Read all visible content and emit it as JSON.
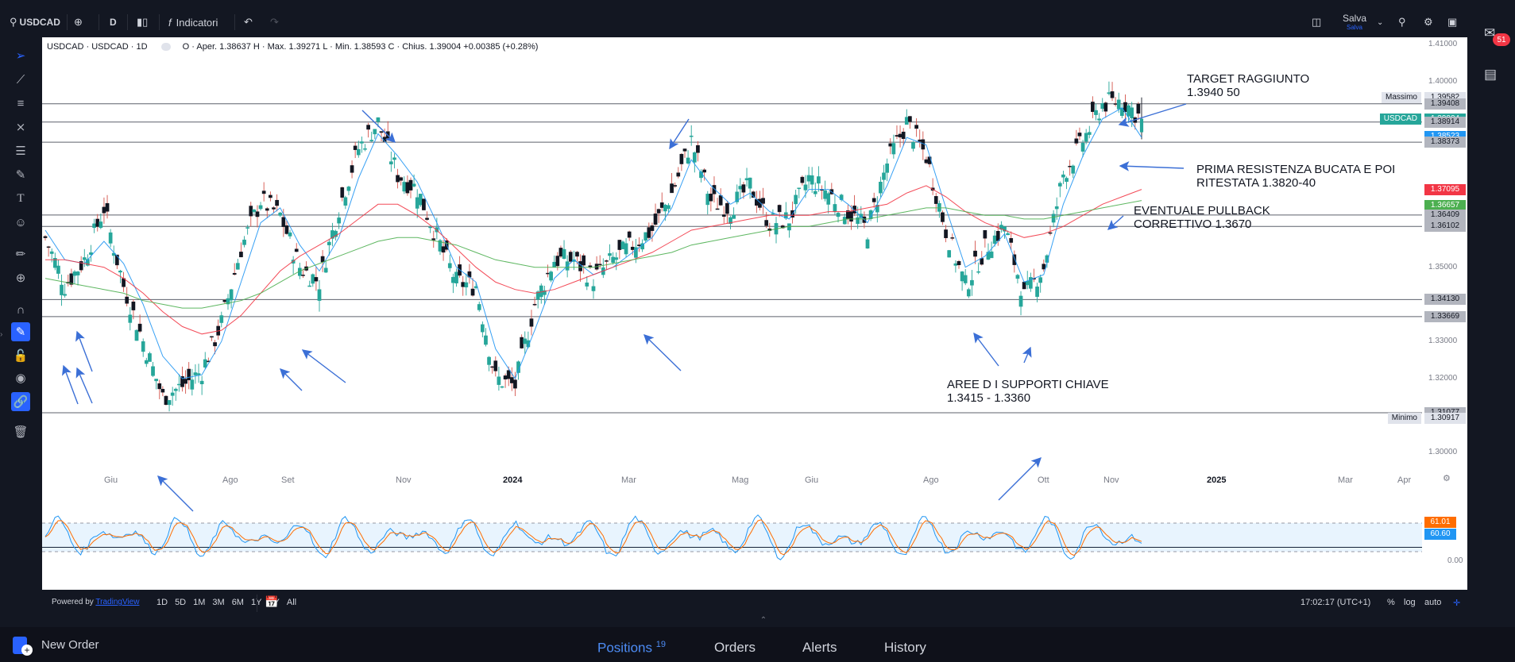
{
  "topbar": {
    "symbol": "USDCAD",
    "interval": "D",
    "indicators": "Indicatori",
    "save_label": "Salva",
    "save_sub": "Salva"
  },
  "legend": {
    "symbol": "USDCAD · USDCAD · 1D",
    "ohlc": "O · Aper. 1.38637 H · Max. 1.39271 L · Min. 1.38593 C · Chius. 1.39004 +0.00385 (+0.28%)"
  },
  "axis": {
    "price_ticks": [
      "1.41000",
      "1.40000",
      "1.35000",
      "1.33000",
      "1.32000",
      "1.30000"
    ],
    "osc_ticks": [
      "0.00"
    ],
    "time_ticks": [
      "Giu",
      "Ago",
      "Set",
      "Nov",
      "2024",
      "Mar",
      "Mag",
      "Giu",
      "Ago",
      "Ott",
      "Nov",
      "2025",
      "Mar",
      "Apr"
    ]
  },
  "price_labels": [
    {
      "text": "1.39582",
      "tag": "Massimo",
      "bg": "#e0e3eb",
      "fg": "#131722"
    },
    {
      "text": "1.39408",
      "tag": "",
      "bg": "#b2b5be",
      "fg": "#131722"
    },
    {
      "text": "1.39004",
      "tag": "USDCAD",
      "bg": "#26a69a",
      "fg": "#ffffff"
    },
    {
      "text": "1.38914",
      "tag": "",
      "bg": "#b2b5be",
      "fg": "#131722"
    },
    {
      "text": "1.38523",
      "tag": "",
      "bg": "#2196f3",
      "fg": "#ffffff"
    },
    {
      "text": "1.38373",
      "tag": "",
      "bg": "#b2b5be",
      "fg": "#131722"
    },
    {
      "text": "1.37095",
      "tag": "",
      "bg": "#f23645",
      "fg": "#ffffff"
    },
    {
      "text": "1.36657",
      "tag": "",
      "bg": "#4caf50",
      "fg": "#ffffff"
    },
    {
      "text": "1.36409",
      "tag": "",
      "bg": "#b2b5be",
      "fg": "#131722"
    },
    {
      "text": "1.36102",
      "tag": "",
      "bg": "#b2b5be",
      "fg": "#131722"
    },
    {
      "text": "1.34130",
      "tag": "",
      "bg": "#b2b5be",
      "fg": "#131722"
    },
    {
      "text": "1.33669",
      "tag": "",
      "bg": "#b2b5be",
      "fg": "#131722"
    },
    {
      "text": "1.31077",
      "tag": "",
      "bg": "#b2b5be",
      "fg": "#131722"
    },
    {
      "text": "1.30917",
      "tag": "Minimo",
      "bg": "#e0e3eb",
      "fg": "#131722"
    }
  ],
  "osc_labels": [
    {
      "text": "61.01",
      "bg": "#ff6d00",
      "fg": "#ffffff"
    },
    {
      "text": "60.60",
      "bg": "#2196f3",
      "fg": "#ffffff"
    }
  ],
  "annotations": {
    "target_l1": "TARGET RAGGIUNTO",
    "target_l2": "1.3940 50",
    "res_l1": "PRIMA RESISTENZA BUCATA E POI",
    "res_l2": "RITESTATA 1.3820-40",
    "pull_l1": "EVENTUALE PULLBACK",
    "pull_l2": "CORRETTIVO 1.3670",
    "sup_l1": "AREE D I SUPPORTI CHIAVE",
    "sup_l2": "1.3415 - 1.3360"
  },
  "chart_data": {
    "type": "line",
    "series": [
      {
        "values": [
          1.358,
          1.345,
          1.352,
          1.366,
          1.345,
          1.33,
          1.315,
          1.318,
          1.322,
          1.335,
          1.355,
          1.368,
          1.364,
          1.35,
          1.346,
          1.366,
          1.382,
          1.389,
          1.375,
          1.371,
          1.358,
          1.346,
          1.345,
          1.32,
          1.318,
          1.34,
          1.352,
          1.352,
          1.347,
          1.352,
          1.356,
          1.36,
          1.37,
          1.384,
          1.368,
          1.366,
          1.372,
          1.362,
          1.363,
          1.374,
          1.37,
          1.365,
          1.36,
          1.378,
          1.389,
          1.38,
          1.36,
          1.345,
          1.355,
          1.361,
          1.342,
          1.35,
          1.375,
          1.384,
          1.394,
          1.395,
          1.39
        ]
      },
      {
        "values": [
          1.36,
          1.352,
          1.351,
          1.357,
          1.351,
          1.34,
          1.326,
          1.32,
          1.321,
          1.33,
          1.346,
          1.362,
          1.366,
          1.356,
          1.349,
          1.358,
          1.374,
          1.386,
          1.38,
          1.373,
          1.362,
          1.35,
          1.346,
          1.328,
          1.32,
          1.333,
          1.347,
          1.352,
          1.348,
          1.35,
          1.354,
          1.358,
          1.366,
          1.379,
          1.372,
          1.367,
          1.37,
          1.365,
          1.363,
          1.371,
          1.371,
          1.367,
          1.362,
          1.372,
          1.385,
          1.383,
          1.366,
          1.35,
          1.353,
          1.359,
          1.346,
          1.348,
          1.367,
          1.38,
          1.39,
          1.393,
          1.385
        ]
      },
      {
        "values": [
          1.352,
          1.352,
          1.351,
          1.35,
          1.347,
          1.343,
          1.338,
          1.334,
          1.332,
          1.333,
          1.337,
          1.343,
          1.349,
          1.353,
          1.356,
          1.359,
          1.363,
          1.367,
          1.367,
          1.364,
          1.36,
          1.355,
          1.35,
          1.346,
          1.344,
          1.343,
          1.344,
          1.346,
          1.348,
          1.35,
          1.352,
          1.354,
          1.357,
          1.36,
          1.361,
          1.362,
          1.363,
          1.364,
          1.364,
          1.364,
          1.365,
          1.365,
          1.366,
          1.367,
          1.37,
          1.372,
          1.369,
          1.365,
          1.362,
          1.36,
          1.358,
          1.359,
          1.361,
          1.364,
          1.367,
          1.369,
          1.371
        ]
      },
      {
        "values": [
          1.347,
          1.346,
          1.345,
          1.344,
          1.343,
          1.341,
          1.34,
          1.339,
          1.339,
          1.34,
          1.341,
          1.343,
          1.346,
          1.349,
          1.351,
          1.353,
          1.355,
          1.357,
          1.358,
          1.358,
          1.357,
          1.356,
          1.354,
          1.352,
          1.351,
          1.35,
          1.35,
          1.35,
          1.35,
          1.351,
          1.352,
          1.353,
          1.354,
          1.356,
          1.357,
          1.358,
          1.359,
          1.36,
          1.361,
          1.361,
          1.362,
          1.363,
          1.363,
          1.364,
          1.365,
          1.366,
          1.366,
          1.365,
          1.364,
          1.364,
          1.363,
          1.363,
          1.364,
          1.365,
          1.366,
          1.367,
          1.368
        ]
      }
    ],
    "ylim": [
      1.296,
      1.412
    ],
    "horizontal_levels": [
      1.39408,
      1.38914,
      1.38373,
      1.36409,
      1.36102,
      1.3413,
      1.33669,
      1.31077
    ],
    "oscillator_levels": [
      80,
      20
    ],
    "grid": false
  },
  "bottom": {
    "powered": "Powered by",
    "brand": "TradingView",
    "ranges": [
      "1D",
      "5D",
      "1M",
      "3M",
      "6M",
      "1Y",
      "5Y",
      "All"
    ],
    "clock": "17:02:17 (UTC+1)",
    "pct": "%",
    "log": "log",
    "auto": "auto"
  },
  "footer": {
    "new_order": "New Order",
    "positions": "Positions",
    "positions_count": "19",
    "orders": "Orders",
    "alerts": "Alerts",
    "history": "History"
  },
  "notifications": "51"
}
